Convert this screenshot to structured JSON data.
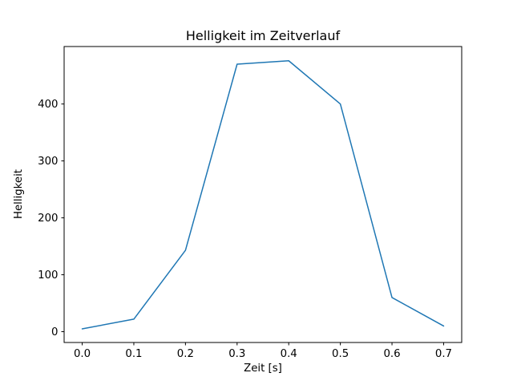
{
  "figure": {
    "title": "Helligkeit im Zeitverlauf",
    "xlabel": "Zeit [s]",
    "ylabel": "Helligkeit"
  },
  "chart_data": {
    "type": "line",
    "title": "Helligkeit im Zeitverlauf",
    "xlabel": "Zeit [s]",
    "ylabel": "Helligkeit",
    "x": [
      0.0,
      0.1,
      0.2,
      0.3,
      0.4,
      0.5,
      0.6,
      0.7
    ],
    "y": [
      5,
      22,
      143,
      470,
      476,
      400,
      60,
      10
    ],
    "xlim": [
      -0.035,
      0.735
    ],
    "ylim": [
      -19,
      501
    ],
    "xticks": [
      0.0,
      0.1,
      0.2,
      0.3,
      0.4,
      0.5,
      0.6,
      0.7
    ],
    "xtick_labels": [
      "0.0",
      "0.1",
      "0.2",
      "0.3",
      "0.4",
      "0.5",
      "0.6",
      "0.7"
    ],
    "yticks": [
      0,
      100,
      200,
      300,
      400
    ],
    "ytick_labels": [
      "0",
      "100",
      "200",
      "300",
      "400"
    ],
    "line_color": "#1f77b4",
    "grid": false,
    "legend": "none"
  }
}
